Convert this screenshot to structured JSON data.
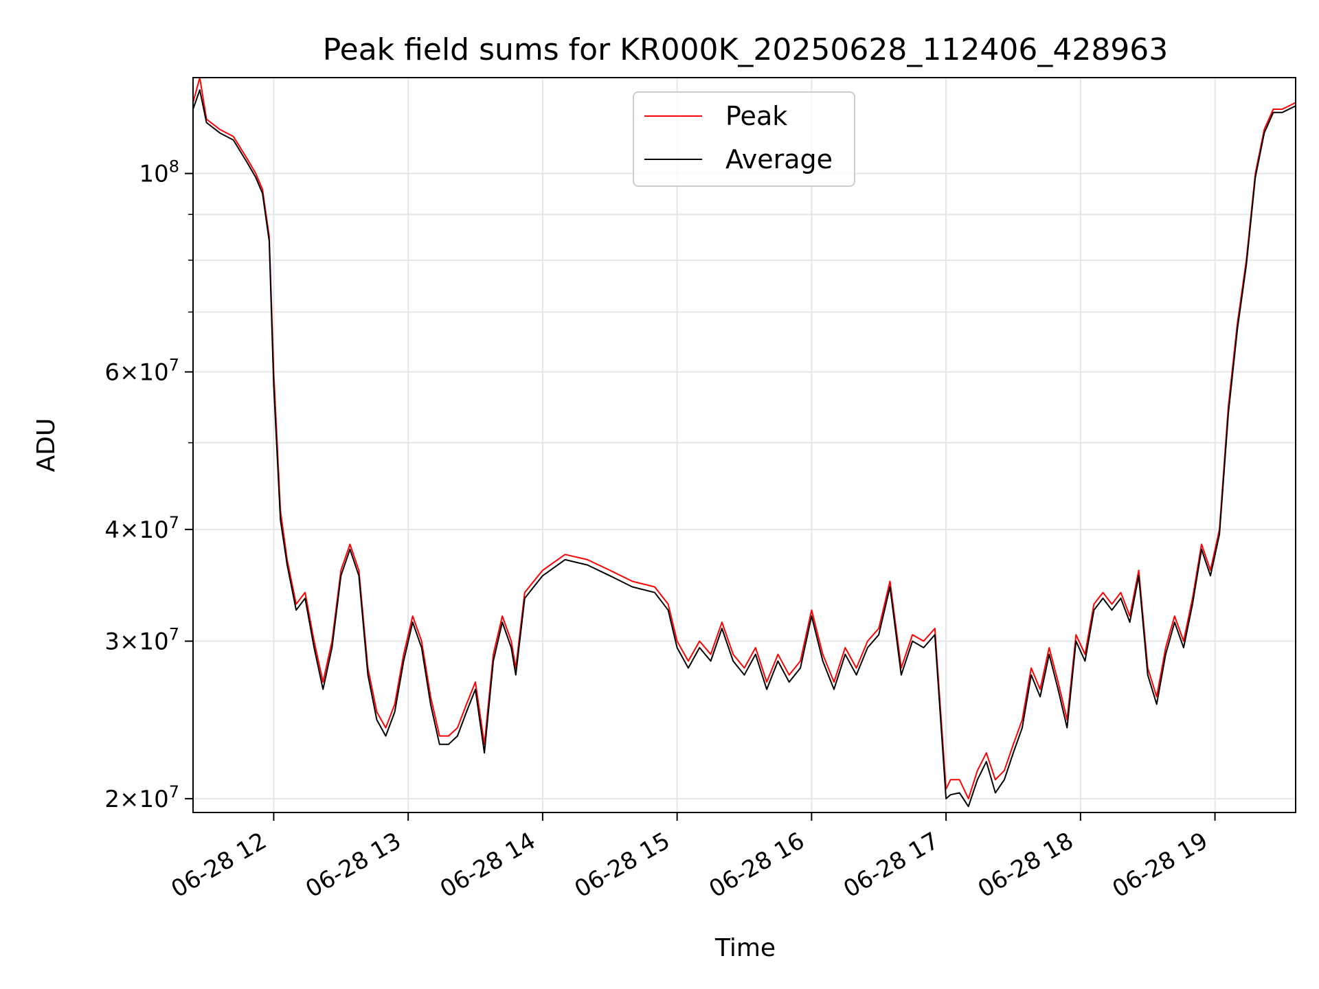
{
  "chart_data": {
    "type": "line",
    "title": "Peak field sums for KR000K_20250628_112406_428963",
    "xlabel": "Time",
    "ylabel": "ADU",
    "yscale": "log",
    "xlim": [
      "2025-06-28 11:24",
      "2025-06-28 19:36"
    ],
    "ylim": [
      19300000,
      128000000
    ],
    "grid": true,
    "legend": "upper center",
    "x_ticks": [
      "06-28 12",
      "06-28 13",
      "06-28 14",
      "06-28 15",
      "06-28 16",
      "06-28 17",
      "06-28 18",
      "06-28 19"
    ],
    "y_ticks": [
      {
        "value": 20000000,
        "mantissa": "2",
        "exponent": "7"
      },
      {
        "value": 30000000,
        "mantissa": "3",
        "exponent": "7"
      },
      {
        "value": 40000000,
        "mantissa": "4",
        "exponent": "7"
      },
      {
        "value": 60000000,
        "mantissa": "6",
        "exponent": "7"
      },
      {
        "value": 100000000,
        "mantissa": "",
        "exponent": "8"
      }
    ],
    "x": [
      "11:24",
      "11:27",
      "11:30",
      "11:36",
      "11:42",
      "11:48",
      "11:52",
      "11:55",
      "11:58",
      "12:00",
      "12:03",
      "12:06",
      "12:10",
      "12:14",
      "12:18",
      "12:22",
      "12:26",
      "12:30",
      "12:34",
      "12:38",
      "12:42",
      "12:46",
      "12:50",
      "12:54",
      "12:58",
      "13:02",
      "13:06",
      "13:10",
      "13:14",
      "13:18",
      "13:22",
      "13:26",
      "13:30",
      "13:34",
      "13:38",
      "13:42",
      "13:46",
      "13:48",
      "13:52",
      "13:56",
      "14:00",
      "14:10",
      "14:20",
      "14:30",
      "14:40",
      "14:50",
      "14:56",
      "15:00",
      "15:05",
      "15:10",
      "15:15",
      "15:20",
      "15:25",
      "15:30",
      "15:35",
      "15:40",
      "15:45",
      "15:50",
      "15:55",
      "16:00",
      "16:05",
      "16:10",
      "16:15",
      "16:20",
      "16:25",
      "16:30",
      "16:35",
      "16:40",
      "16:45",
      "16:50",
      "16:55",
      "17:00",
      "17:02",
      "17:06",
      "17:10",
      "17:14",
      "17:18",
      "17:22",
      "17:26",
      "17:30",
      "17:34",
      "17:38",
      "17:42",
      "17:46",
      "17:50",
      "17:54",
      "17:58",
      "18:02",
      "18:06",
      "18:10",
      "18:14",
      "18:18",
      "18:22",
      "18:26",
      "18:30",
      "18:34",
      "18:38",
      "18:42",
      "18:46",
      "18:50",
      "18:54",
      "18:58",
      "19:02",
      "19:06",
      "19:10",
      "19:14",
      "19:18",
      "19:22",
      "19:26",
      "19:30",
      "19:36"
    ],
    "series": [
      {
        "name": "Peak",
        "color": "#ff0000",
        "values": [
          120000000,
          128000000,
          115000000,
          112000000,
          110000000,
          104000000,
          100000000,
          96000000,
          85000000,
          60000000,
          42000000,
          37000000,
          33000000,
          34000000,
          30000000,
          27000000,
          30000000,
          36000000,
          38500000,
          36000000,
          28000000,
          25000000,
          24000000,
          25500000,
          29000000,
          32000000,
          30000000,
          26000000,
          23500000,
          23500000,
          24000000,
          25500000,
          27000000,
          23000000,
          29000000,
          32000000,
          30000000,
          28000000,
          34000000,
          35000000,
          36000000,
          37500000,
          37000000,
          36000000,
          35000000,
          34500000,
          33000000,
          30000000,
          28500000,
          30000000,
          29000000,
          31500000,
          29000000,
          28000000,
          29500000,
          27000000,
          29000000,
          27500000,
          28500000,
          32500000,
          29000000,
          27000000,
          29500000,
          28000000,
          30000000,
          31000000,
          35000000,
          28000000,
          30500000,
          30000000,
          31000000,
          20500000,
          21000000,
          21000000,
          20000000,
          21500000,
          22500000,
          21000000,
          21500000,
          23000000,
          24500000,
          28000000,
          26500000,
          29500000,
          27000000,
          24500000,
          30500000,
          29000000,
          33000000,
          34000000,
          33000000,
          34000000,
          32000000,
          36000000,
          28000000,
          26000000,
          29500000,
          32000000,
          30000000,
          33500000,
          38500000,
          36000000,
          40000000,
          55000000,
          68000000,
          80000000,
          100000000,
          112000000,
          118000000,
          118000000,
          120000000
        ]
      },
      {
        "name": "Average",
        "color": "#000000",
        "values": [
          118000000,
          124000000,
          114000000,
          111000000,
          109000000,
          103000000,
          99000000,
          95000000,
          84000000,
          58000000,
          41000000,
          36500000,
          32500000,
          33500000,
          29500000,
          26500000,
          29500000,
          35500000,
          38000000,
          35500000,
          27500000,
          24500000,
          23500000,
          25000000,
          28500000,
          31500000,
          29500000,
          25500000,
          23000000,
          23000000,
          23500000,
          25000000,
          26500000,
          22500000,
          28500000,
          31500000,
          29500000,
          27500000,
          33500000,
          34500000,
          35500000,
          37000000,
          36500000,
          35500000,
          34500000,
          34000000,
          32500000,
          29500000,
          28000000,
          29500000,
          28500000,
          31000000,
          28500000,
          27500000,
          29000000,
          26500000,
          28500000,
          27000000,
          28000000,
          32000000,
          28500000,
          26500000,
          29000000,
          27500000,
          29500000,
          30500000,
          34500000,
          27500000,
          30000000,
          29500000,
          30500000,
          20000000,
          20200000,
          20300000,
          19600000,
          21000000,
          22000000,
          20300000,
          21000000,
          22500000,
          24000000,
          27500000,
          26000000,
          29000000,
          26500000,
          24000000,
          30000000,
          28500000,
          32500000,
          33500000,
          32500000,
          33500000,
          31500000,
          35500000,
          27500000,
          25500000,
          29000000,
          31500000,
          29500000,
          33000000,
          38000000,
          35500000,
          39500000,
          54000000,
          67000000,
          79000000,
          99000000,
          111000000,
          117000000,
          117000000,
          119000000
        ]
      }
    ]
  }
}
